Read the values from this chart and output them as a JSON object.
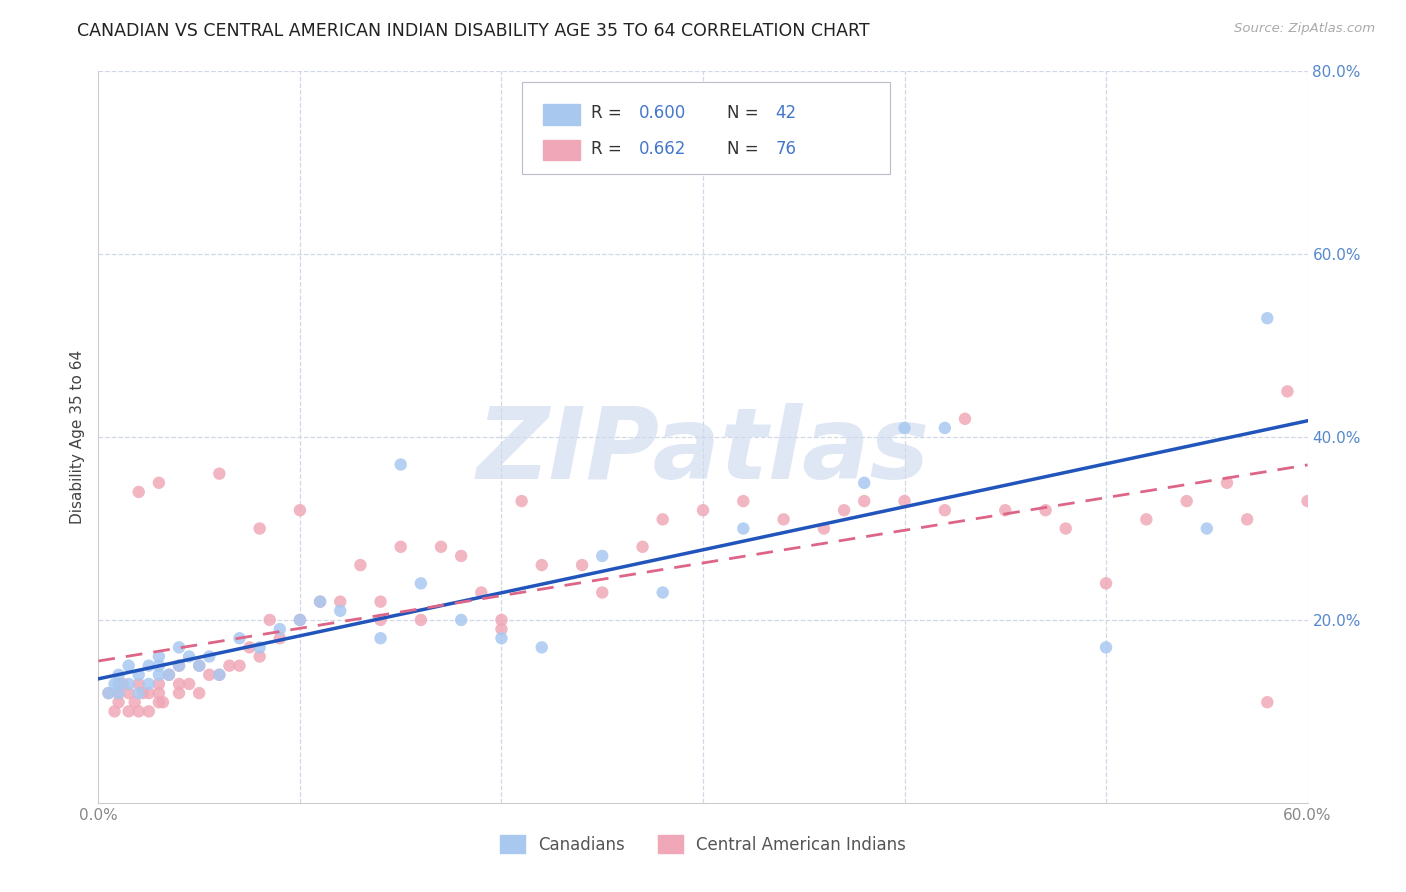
{
  "title": "CANADIAN VS CENTRAL AMERICAN INDIAN DISABILITY AGE 35 TO 64 CORRELATION CHART",
  "source": "Source: ZipAtlas.com",
  "ylabel": "Disability Age 35 to 64",
  "xlim": [
    0.0,
    0.6
  ],
  "ylim": [
    0.0,
    0.8
  ],
  "xtick_vals": [
    0.0,
    0.1,
    0.2,
    0.3,
    0.4,
    0.5,
    0.6
  ],
  "xtick_labels_show": [
    "0.0%",
    "",
    "",
    "",
    "",
    "",
    "60.0%"
  ],
  "ytick_vals": [
    0.2,
    0.4,
    0.6,
    0.8
  ],
  "ytick_labels": [
    "20.0%",
    "40.0%",
    "60.0%",
    "80.0%"
  ],
  "blue_color": "#a8c8f0",
  "pink_color": "#f0a8b8",
  "blue_line_color": "#2255bb",
  "pink_line_color": "#dd6688",
  "R_blue": 0.6,
  "N_blue": 42,
  "R_pink": 0.662,
  "N_pink": 76,
  "blue_scatter_x": [
    0.005,
    0.008,
    0.01,
    0.01,
    0.01,
    0.015,
    0.015,
    0.02,
    0.02,
    0.025,
    0.025,
    0.03,
    0.03,
    0.03,
    0.035,
    0.04,
    0.04,
    0.045,
    0.05,
    0.055,
    0.06,
    0.07,
    0.08,
    0.09,
    0.1,
    0.11,
    0.12,
    0.14,
    0.15,
    0.16,
    0.18,
    0.2,
    0.22,
    0.25,
    0.28,
    0.32,
    0.38,
    0.4,
    0.42,
    0.5,
    0.55,
    0.58
  ],
  "blue_scatter_y": [
    0.12,
    0.13,
    0.12,
    0.13,
    0.14,
    0.13,
    0.15,
    0.12,
    0.14,
    0.13,
    0.15,
    0.14,
    0.15,
    0.16,
    0.14,
    0.15,
    0.17,
    0.16,
    0.15,
    0.16,
    0.14,
    0.18,
    0.17,
    0.19,
    0.2,
    0.22,
    0.21,
    0.18,
    0.37,
    0.24,
    0.2,
    0.18,
    0.17,
    0.27,
    0.23,
    0.3,
    0.35,
    0.41,
    0.41,
    0.17,
    0.3,
    0.53
  ],
  "pink_scatter_x": [
    0.005,
    0.008,
    0.01,
    0.01,
    0.012,
    0.015,
    0.015,
    0.018,
    0.02,
    0.02,
    0.022,
    0.025,
    0.025,
    0.03,
    0.03,
    0.03,
    0.032,
    0.035,
    0.04,
    0.04,
    0.04,
    0.045,
    0.05,
    0.05,
    0.055,
    0.06,
    0.065,
    0.07,
    0.075,
    0.08,
    0.085,
    0.09,
    0.1,
    0.11,
    0.12,
    0.13,
    0.14,
    0.15,
    0.16,
    0.17,
    0.18,
    0.19,
    0.2,
    0.21,
    0.22,
    0.24,
    0.25,
    0.27,
    0.28,
    0.3,
    0.32,
    0.34,
    0.36,
    0.37,
    0.38,
    0.4,
    0.42,
    0.43,
    0.45,
    0.47,
    0.48,
    0.5,
    0.52,
    0.54,
    0.56,
    0.57,
    0.58,
    0.59,
    0.6,
    0.02,
    0.03,
    0.06,
    0.08,
    0.1,
    0.14,
    0.2
  ],
  "pink_scatter_y": [
    0.12,
    0.1,
    0.11,
    0.12,
    0.13,
    0.1,
    0.12,
    0.11,
    0.1,
    0.13,
    0.12,
    0.1,
    0.12,
    0.11,
    0.12,
    0.13,
    0.11,
    0.14,
    0.12,
    0.13,
    0.15,
    0.13,
    0.12,
    0.15,
    0.14,
    0.14,
    0.15,
    0.15,
    0.17,
    0.16,
    0.2,
    0.18,
    0.2,
    0.22,
    0.22,
    0.26,
    0.22,
    0.28,
    0.2,
    0.28,
    0.27,
    0.23,
    0.2,
    0.33,
    0.26,
    0.26,
    0.23,
    0.28,
    0.31,
    0.32,
    0.33,
    0.31,
    0.3,
    0.32,
    0.33,
    0.33,
    0.32,
    0.42,
    0.32,
    0.32,
    0.3,
    0.24,
    0.31,
    0.33,
    0.35,
    0.31,
    0.11,
    0.45,
    0.33,
    0.34,
    0.35,
    0.36,
    0.3,
    0.32,
    0.2,
    0.19
  ],
  "background_color": "#ffffff",
  "grid_color": "#d0d8e8",
  "watermark_text": "ZIPatlas",
  "watermark_color": "#ccd8ee",
  "legend_label_blue": "Canadians",
  "legend_label_pink": "Central American Indians"
}
